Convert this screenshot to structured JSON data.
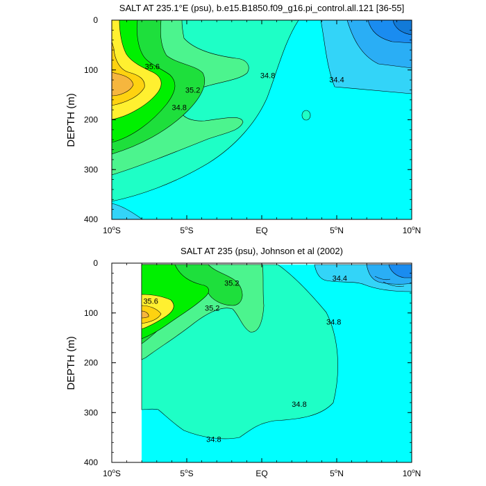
{
  "chart_data": [
    {
      "type": "contour",
      "title": "SALT AT 235.1°E (psu), b.e15.B1850.f09_g16.pi_control.all.121 [36-55]",
      "ylabel": "DEPTH (m)",
      "xlabel": "",
      "xlim": [
        -10,
        10
      ],
      "ylim": [
        0,
        400
      ],
      "y_inverted": true,
      "x_ticks": [
        {
          "v": -10,
          "l": "10",
          "s": "o",
          "h": "S"
        },
        {
          "v": -5,
          "l": "5",
          "s": "o",
          "h": "S"
        },
        {
          "v": 0,
          "l": "EQ",
          "s": "",
          "h": ""
        },
        {
          "v": 5,
          "l": "5",
          "s": "o",
          "h": "N"
        },
        {
          "v": 10,
          "l": "10",
          "s": "o",
          "h": "N"
        }
      ],
      "y_ticks": [
        0,
        100,
        200,
        300,
        400
      ],
      "contour_levels": [
        34.0,
        34.2,
        34.4,
        34.6,
        34.8,
        35.0,
        35.2,
        35.4,
        35.6,
        35.8
      ],
      "colors": [
        "#1a8cf0",
        "#2aaef5",
        "#33d4f8",
        "#00ffff",
        "#1effc6",
        "#4cf48e",
        "#1edf3c",
        "#00f000",
        "#fff030",
        "#fed210",
        "#f6b63e"
      ],
      "contour_labels": [
        {
          "text": "35.6",
          "x": -7.3,
          "y": 93
        },
        {
          "text": "35.2",
          "x": -4.6,
          "y": 140
        },
        {
          "text": "34.8",
          "x": -5.5,
          "y": 175
        },
        {
          "text": "34.8",
          "x": 0.4,
          "y": 111
        },
        {
          "text": "34.4",
          "x": 5.0,
          "y": 119
        }
      ]
    },
    {
      "type": "contour",
      "title": "SALT AT 235 (psu), Johnson et al (2002)",
      "ylabel": "DEPTH (m)",
      "xlabel": "",
      "xlim": [
        -10,
        10
      ],
      "ylim": [
        0,
        400
      ],
      "y_inverted": true,
      "x_ticks": [
        {
          "v": -10,
          "l": "10",
          "s": "o",
          "h": "S"
        },
        {
          "v": -5,
          "l": "5",
          "s": "o",
          "h": "S"
        },
        {
          "v": 0,
          "l": "EQ",
          "s": "",
          "h": ""
        },
        {
          "v": 5,
          "l": "5",
          "s": "o",
          "h": "N"
        },
        {
          "v": 10,
          "l": "10",
          "s": "o",
          "h": "N"
        }
      ],
      "y_ticks": [
        0,
        100,
        200,
        300,
        400
      ],
      "data_extent_x": [
        -8,
        10
      ],
      "contour_labels": [
        {
          "text": "35.2",
          "x": -2.0,
          "y": 40
        },
        {
          "text": "35.6",
          "x": -7.4,
          "y": 76
        },
        {
          "text": "35.2",
          "x": -3.3,
          "y": 90
        },
        {
          "text": "34.4",
          "x": 5.2,
          "y": 30
        },
        {
          "text": "34.8",
          "x": 4.8,
          "y": 118
        },
        {
          "text": "34.8",
          "x": 2.5,
          "y": 283
        },
        {
          "text": "34.8",
          "x": -3.2,
          "y": 353
        }
      ]
    }
  ]
}
